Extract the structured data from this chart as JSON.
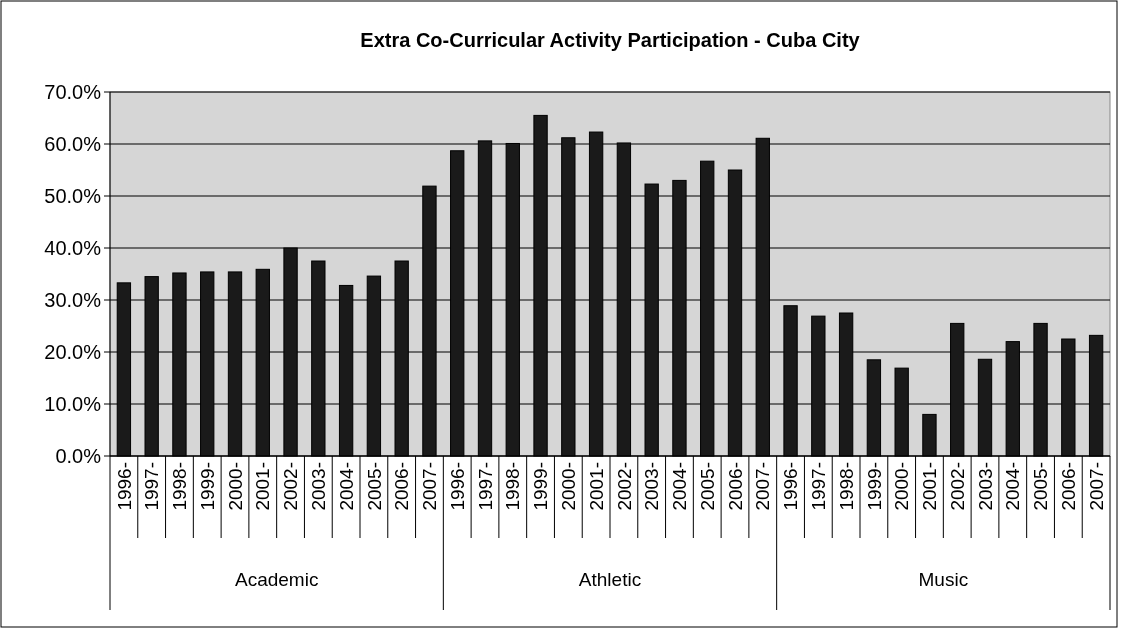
{
  "chart_data": {
    "type": "bar",
    "title": "Extra Co-Curricular Activity Participation - Cuba City",
    "categories": [
      "1996-",
      "1997-",
      "1998-",
      "1999-",
      "2000-",
      "2001-",
      "2002-",
      "2003-",
      "2004-",
      "2005-",
      "2006-",
      "2007-",
      "1996-",
      "1997-",
      "1998-",
      "1999-",
      "2000-",
      "2001-",
      "2002-",
      "2003-",
      "2004-",
      "2005-",
      "2006-",
      "2007-",
      "1996-",
      "1997-",
      "1998-",
      "1999-",
      "2000-",
      "2001-",
      "2002-",
      "2003-",
      "2004-",
      "2005-",
      "2006-",
      "2007-"
    ],
    "values": [
      33.3,
      34.5,
      35.2,
      35.4,
      35.4,
      35.9,
      40.0,
      37.5,
      32.8,
      34.6,
      37.5,
      51.9,
      58.7,
      60.6,
      60.1,
      65.5,
      61.2,
      62.3,
      60.2,
      52.3,
      53.0,
      56.7,
      55.0,
      61.1,
      28.9,
      26.9,
      27.5,
      18.5,
      16.9,
      8.0,
      25.5,
      18.6,
      22.0,
      25.5,
      22.5,
      23.2
    ],
    "color": "#1a1a1a",
    "annotations": [
      "Academic",
      "Athletic",
      "Music"
    ],
    "ylim": [
      0,
      70
    ],
    "yticks": [
      {
        "value": 0,
        "label": "0.0%"
      },
      {
        "value": 10,
        "label": "10.0%"
      },
      {
        "value": 20,
        "label": "20.0%"
      },
      {
        "value": 30,
        "label": "30.0%"
      },
      {
        "value": 40,
        "label": "40.0%"
      },
      {
        "value": 50,
        "label": "50.0%"
      },
      {
        "value": 60,
        "label": "60.0%"
      },
      {
        "value": 70,
        "label": "70.0%"
      }
    ],
    "grid": "y"
  }
}
